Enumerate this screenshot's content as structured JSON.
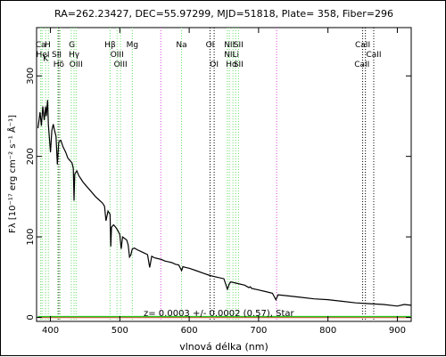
{
  "chart_data": {
    "type": "line",
    "title": "RA=262.23427, DEC=55.97299, MJD=51818, Plate=  358, Fiber=296",
    "xlabel": "vlnová délka (nm)",
    "ylabel": "Fλ [10⁻¹⁷ erg cm⁻² s⁻¹ Å⁻¹]",
    "annotation": "z= 0.0003 +/- 0.0002 (0.57), Star",
    "xlim": [
      380,
      920
    ],
    "ylim": [
      -5,
      360
    ],
    "x_ticks": [
      400,
      500,
      600,
      700,
      800,
      900
    ],
    "y_ticks": [
      0,
      100,
      200,
      300
    ],
    "grid": false,
    "series": [
      {
        "color": "#000000",
        "points": [
          [
            382,
            235
          ],
          [
            385,
            255
          ],
          [
            387,
            238
          ],
          [
            389,
            262
          ],
          [
            391,
            245
          ],
          [
            393,
            262
          ],
          [
            394,
            250
          ],
          [
            396,
            270
          ],
          [
            397,
            240
          ],
          [
            400,
            205
          ],
          [
            402,
            232
          ],
          [
            404,
            240
          ],
          [
            406,
            232
          ],
          [
            408,
            225
          ],
          [
            410,
            190
          ],
          [
            412,
            218
          ],
          [
            415,
            220
          ],
          [
            418,
            212
          ],
          [
            422,
            205
          ],
          [
            425,
            198
          ],
          [
            428,
            195
          ],
          [
            431,
            192
          ],
          [
            433,
            185
          ],
          [
            434,
            145
          ],
          [
            435,
            178
          ],
          [
            438,
            182
          ],
          [
            441,
            176
          ],
          [
            444,
            172
          ],
          [
            447,
            168
          ],
          [
            450,
            165
          ],
          [
            455,
            160
          ],
          [
            460,
            155
          ],
          [
            465,
            150
          ],
          [
            470,
            146
          ],
          [
            475,
            142
          ],
          [
            478,
            138
          ],
          [
            480,
            120
          ],
          [
            483,
            132
          ],
          [
            486,
            128
          ],
          [
            487,
            88
          ],
          [
            488,
            112
          ],
          [
            491,
            115
          ],
          [
            494,
            112
          ],
          [
            497,
            108
          ],
          [
            500,
            103
          ],
          [
            502,
            85
          ],
          [
            504,
            100
          ],
          [
            507,
            98
          ],
          [
            510,
            96
          ],
          [
            512,
            90
          ],
          [
            514,
            75
          ],
          [
            516,
            78
          ],
          [
            518,
            85
          ],
          [
            521,
            86
          ],
          [
            525,
            84
          ],
          [
            530,
            82
          ],
          [
            535,
            80
          ],
          [
            540,
            78
          ],
          [
            543,
            62
          ],
          [
            546,
            76
          ],
          [
            550,
            74
          ],
          [
            555,
            73
          ],
          [
            560,
            72
          ],
          [
            565,
            70
          ],
          [
            570,
            69
          ],
          [
            575,
            68
          ],
          [
            580,
            66
          ],
          [
            585,
            65
          ],
          [
            589,
            58
          ],
          [
            591,
            63
          ],
          [
            595,
            62
          ],
          [
            600,
            61
          ],
          [
            610,
            58
          ],
          [
            620,
            55
          ],
          [
            630,
            52
          ],
          [
            640,
            50
          ],
          [
            650,
            48
          ],
          [
            655,
            35
          ],
          [
            658,
            42
          ],
          [
            660,
            44
          ],
          [
            670,
            42
          ],
          [
            680,
            40
          ],
          [
            686,
            37
          ],
          [
            688,
            38
          ],
          [
            690,
            36
          ],
          [
            700,
            34
          ],
          [
            710,
            32
          ],
          [
            720,
            30
          ],
          [
            725,
            22
          ],
          [
            728,
            28
          ],
          [
            740,
            27
          ],
          [
            760,
            25
          ],
          [
            780,
            23
          ],
          [
            800,
            22
          ],
          [
            820,
            20
          ],
          [
            840,
            18
          ],
          [
            860,
            17
          ],
          [
            880,
            16
          ],
          [
            900,
            14
          ],
          [
            910,
            16
          ],
          [
            920,
            15
          ]
        ]
      },
      {
        "color": "#ff3b3b",
        "points": [
          [
            382,
            0
          ],
          [
            920,
            0
          ]
        ]
      },
      {
        "color": "#22cc22",
        "points": [
          [
            382,
            1
          ],
          [
            920,
            1
          ]
        ]
      }
    ],
    "line_markers": [
      {
        "x": 386,
        "color": "#66dd66",
        "style": "dotted"
      },
      {
        "x": 388,
        "color": "#66dd66",
        "style": "dotted"
      },
      {
        "x": 393,
        "color": "#66dd66",
        "style": "dotted"
      },
      {
        "x": 397,
        "color": "#66dd66",
        "style": "dotted"
      },
      {
        "x": 410,
        "color": "#66dd66",
        "style": "dotted"
      },
      {
        "x": 412,
        "color": "#000000",
        "style": "dotted"
      },
      {
        "x": 414,
        "color": "#66dd66",
        "style": "dotted"
      },
      {
        "x": 430,
        "color": "#66dd66",
        "style": "dotted"
      },
      {
        "x": 434,
        "color": "#66dd66",
        "style": "dotted"
      },
      {
        "x": 437,
        "color": "#66dd66",
        "style": "dotted"
      },
      {
        "x": 486,
        "color": "#66dd66",
        "style": "dotted"
      },
      {
        "x": 496,
        "color": "#66dd66",
        "style": "dotted"
      },
      {
        "x": 501,
        "color": "#66dd66",
        "style": "dotted"
      },
      {
        "x": 518,
        "color": "#66dd66",
        "style": "dotted"
      },
      {
        "x": 559,
        "color": "#dd44dd",
        "style": "dotted"
      },
      {
        "x": 589,
        "color": "#66dd66",
        "style": "dotted"
      },
      {
        "x": 630,
        "color": "#000000",
        "style": "dotted"
      },
      {
        "x": 636,
        "color": "#000000",
        "style": "dotted"
      },
      {
        "x": 655,
        "color": "#66dd66",
        "style": "dotted"
      },
      {
        "x": 658,
        "color": "#66dd66",
        "style": "dotted"
      },
      {
        "x": 663,
        "color": "#66dd66",
        "style": "dotted"
      },
      {
        "x": 667,
        "color": "#66dd66",
        "style": "dotted"
      },
      {
        "x": 671,
        "color": "#66dd66",
        "style": "dotted"
      },
      {
        "x": 726,
        "color": "#dd44dd",
        "style": "dotted"
      },
      {
        "x": 850,
        "color": "#000000",
        "style": "dotted"
      },
      {
        "x": 854,
        "color": "#000000",
        "style": "dotted"
      },
      {
        "x": 866,
        "color": "#000000",
        "style": "dotted"
      }
    ],
    "line_labels": [
      {
        "text": "Ca",
        "x": 386,
        "row": 0
      },
      {
        "text": "H",
        "x": 396,
        "row": 0
      },
      {
        "text": "K",
        "x": 393,
        "row": 1.4
      },
      {
        "text": "HeI",
        "x": 389,
        "row": 1
      },
      {
        "text": "SII",
        "x": 409,
        "row": 1
      },
      {
        "text": "Hδ",
        "x": 412,
        "row": 2
      },
      {
        "text": "G",
        "x": 431,
        "row": 0
      },
      {
        "text": "Hγ",
        "x": 434,
        "row": 1
      },
      {
        "text": "OIII",
        "x": 437,
        "row": 2
      },
      {
        "text": "Hβ",
        "x": 486,
        "row": 0
      },
      {
        "text": "OIII",
        "x": 496,
        "row": 1
      },
      {
        "text": "OIII",
        "x": 501,
        "row": 2
      },
      {
        "text": "Mg",
        "x": 518,
        "row": 0
      },
      {
        "text": "Na",
        "x": 589,
        "row": 0
      },
      {
        "text": "OI",
        "x": 630,
        "row": 0
      },
      {
        "text": "OI",
        "x": 636,
        "row": 2
      },
      {
        "text": "NII",
        "x": 658,
        "row": 0
      },
      {
        "text": "SII",
        "x": 671,
        "row": 0
      },
      {
        "text": "NII",
        "x": 658,
        "row": 1
      },
      {
        "text": "Li",
        "x": 667,
        "row": 1
      },
      {
        "text": "Hα",
        "x": 661,
        "row": 2
      },
      {
        "text": "SII",
        "x": 671,
        "row": 2
      },
      {
        "text": "CaII",
        "x": 850,
        "row": 0
      },
      {
        "text": "CaII",
        "x": 866,
        "row": 1
      },
      {
        "text": "CaII",
        "x": 849,
        "row": 2
      }
    ]
  }
}
